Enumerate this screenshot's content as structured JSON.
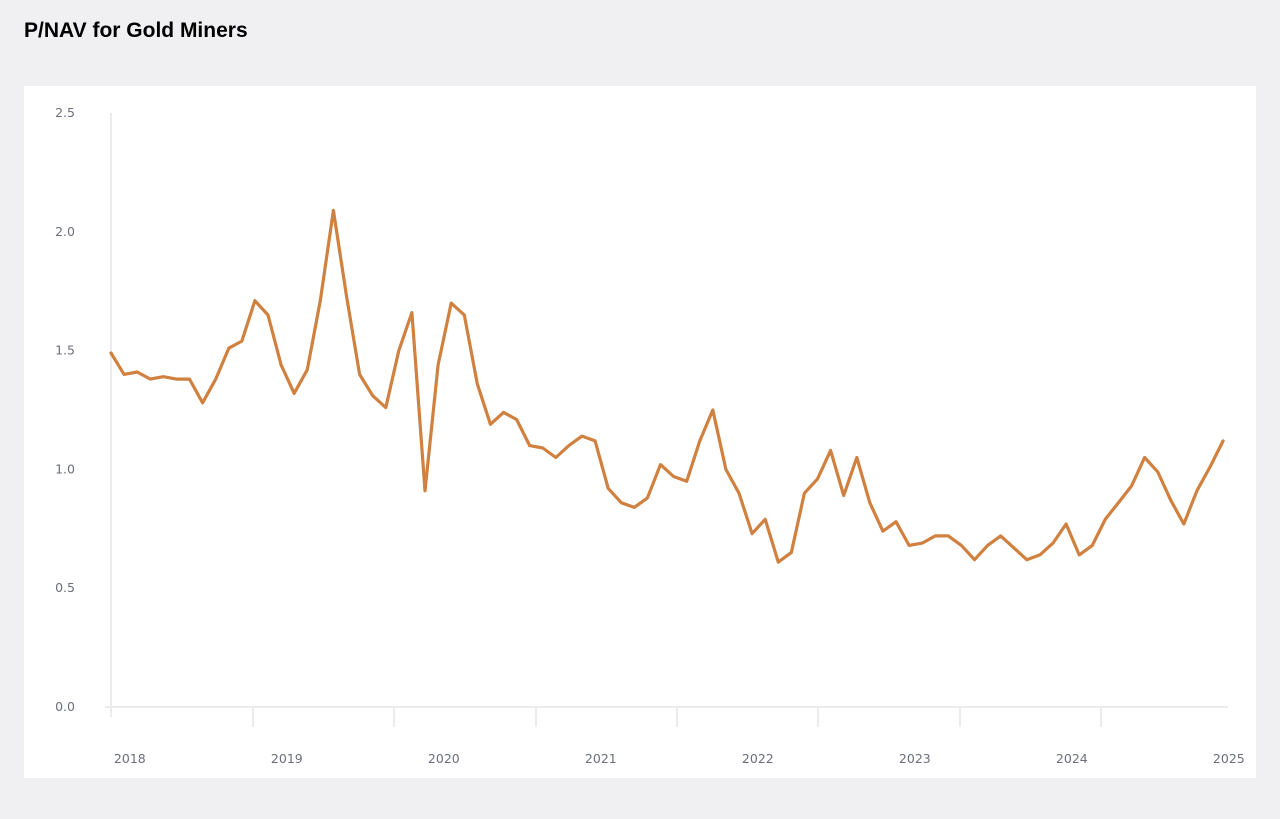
{
  "title": "P/NAV for Gold Miners",
  "colors": {
    "line": "#d0803f",
    "grid": "#ececef",
    "tick_text": "#6b6f7b",
    "background": "#f0eff2",
    "card": "#ffffff"
  },
  "chart_data": {
    "type": "line",
    "title": "P/NAV for Gold Miners",
    "xlabel": "",
    "ylabel": "",
    "ylim": [
      0,
      2.5
    ],
    "xlim": [
      "2018-01",
      "2025-02"
    ],
    "yticks": [
      "0.0",
      "0.5",
      "1.0",
      "1.5",
      "2.0",
      "2.5"
    ],
    "xticks": [
      "2018",
      "2019",
      "2020",
      "2021",
      "2022",
      "2023",
      "2024",
      "2025"
    ],
    "grid": false,
    "legend": "none",
    "series": [
      {
        "x": [
          "2018-01",
          "2018-02",
          "2018-03",
          "2018-04",
          "2018-05",
          "2018-06",
          "2018-07",
          "2018-08",
          "2018-09",
          "2018-10",
          "2018-11",
          "2018-12",
          "2019-01",
          "2019-02",
          "2019-03",
          "2019-04",
          "2019-05",
          "2019-06",
          "2019-07",
          "2019-08",
          "2019-09",
          "2019-10",
          "2019-11",
          "2019-12",
          "2020-01",
          "2020-02",
          "2020-03",
          "2020-04",
          "2020-05",
          "2020-06",
          "2020-07",
          "2020-08",
          "2020-09",
          "2020-10",
          "2020-11",
          "2020-12",
          "2021-01",
          "2021-02",
          "2021-03",
          "2021-04",
          "2021-05",
          "2021-06",
          "2021-07",
          "2021-08",
          "2021-09",
          "2021-10",
          "2021-11",
          "2021-12",
          "2022-01",
          "2022-02",
          "2022-03",
          "2022-04",
          "2022-05",
          "2022-06",
          "2022-07",
          "2022-08",
          "2022-09",
          "2022-10",
          "2022-11",
          "2022-12",
          "2023-01",
          "2023-02",
          "2023-03",
          "2023-04",
          "2023-05",
          "2023-06",
          "2023-07",
          "2023-08",
          "2023-09",
          "2023-10",
          "2023-11",
          "2023-12",
          "2024-01",
          "2024-02",
          "2024-03",
          "2024-04",
          "2024-05",
          "2024-06",
          "2024-07",
          "2024-08",
          "2024-09",
          "2024-10",
          "2024-11",
          "2024-12",
          "2025-01",
          "2025-02"
        ],
        "values": [
          1.49,
          1.4,
          1.41,
          1.38,
          1.39,
          1.38,
          1.38,
          1.28,
          1.38,
          1.51,
          1.54,
          1.71,
          1.65,
          1.44,
          1.32,
          1.42,
          1.71,
          2.09,
          1.73,
          1.4,
          1.31,
          1.26,
          1.5,
          1.66,
          0.91,
          1.44,
          1.7,
          1.65,
          1.36,
          1.19,
          1.24,
          1.21,
          1.1,
          1.09,
          1.05,
          1.1,
          1.14,
          1.12,
          0.92,
          0.86,
          0.84,
          0.88,
          1.02,
          0.97,
          0.95,
          1.12,
          1.25,
          1.0,
          0.9,
          0.73,
          0.79,
          0.61,
          0.65,
          0.9,
          0.96,
          1.08,
          0.89,
          1.05,
          0.86,
          0.74,
          0.78,
          0.68,
          0.69,
          0.72,
          0.72,
          0.68,
          0.62,
          0.68,
          0.72,
          0.67,
          0.62,
          0.64,
          0.69,
          0.77,
          0.64,
          0.68,
          0.79,
          0.86,
          0.93,
          1.05,
          0.99,
          0.87,
          0.77,
          0.91,
          1.01,
          1.12
        ]
      }
    ]
  }
}
